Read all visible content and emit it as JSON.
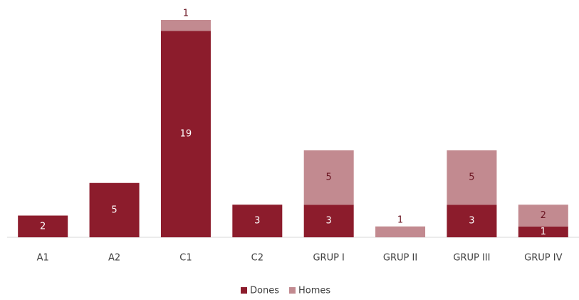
{
  "chart_data": {
    "type": "stacked_bar",
    "categories": [
      "A1",
      "A2",
      "C1",
      "C2",
      "GRUP I",
      "GRUP II",
      "GRUP III",
      "GRUP IV"
    ],
    "series": [
      {
        "name": "Dones",
        "color": "#8c1c2c",
        "values": [
          2,
          5,
          19,
          3,
          3,
          null,
          3,
          1
        ]
      },
      {
        "name": "Homes",
        "color": "#c28a90",
        "values": [
          null,
          null,
          1,
          null,
          5,
          1,
          5,
          2
        ]
      }
    ],
    "ylim": [
      0,
      20
    ]
  }
}
